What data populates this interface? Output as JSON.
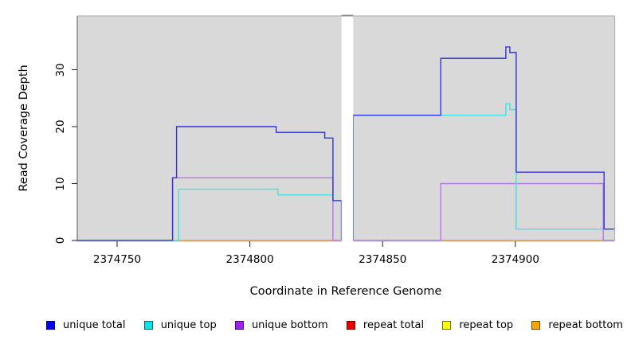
{
  "chart_data": {
    "type": "line",
    "style": "step-coverage-plot",
    "xlabel": "Coordinate in Reference Genome",
    "ylabel": "Read Coverage Depth",
    "xlim": [
      2374735,
      2374937.4
    ],
    "ylim": [
      0,
      39.4
    ],
    "grid": false,
    "plot_bg": "#d9d9d9",
    "x_ticks": [
      {
        "value": 2374750,
        "label": "2374750"
      },
      {
        "value": 2374800,
        "label": "2374800"
      },
      {
        "value": 2374850,
        "label": "2374850"
      },
      {
        "value": 2374900,
        "label": "2374900"
      }
    ],
    "y_ticks": [
      {
        "value": 0,
        "label": "0"
      },
      {
        "value": 10,
        "label": "10"
      },
      {
        "value": 20,
        "label": "20"
      },
      {
        "value": 30,
        "label": "30"
      }
    ],
    "x_break": {
      "from": 2374834.5,
      "to": 2374838.9
    },
    "series": [
      {
        "name": "repeat total",
        "color": "#e02020",
        "segments": [
          [
            [
              2374735,
              0
            ],
            [
              2374834.5,
              0
            ]
          ],
          [
            [
              2374838.9,
              0
            ],
            [
              2374937.4,
              0
            ]
          ]
        ]
      },
      {
        "name": "repeat top",
        "color": "#ffe800",
        "segments": [
          [
            [
              2374735,
              0
            ],
            [
              2374834.5,
              0
            ]
          ],
          [
            [
              2374838.9,
              0
            ],
            [
              2374937.4,
              0
            ]
          ]
        ]
      },
      {
        "name": "repeat bottom",
        "color": "#ff9d26",
        "segments": [
          [
            [
              2374735,
              0
            ],
            [
              2374834.5,
              0
            ]
          ],
          [
            [
              2374838.9,
              0
            ],
            [
              2374937.4,
              0
            ]
          ]
        ]
      },
      {
        "name": "unique bottom",
        "color": "#b678ec",
        "segments": [
          [
            [
              2374735,
              0
            ],
            [
              2374770.9,
              0
            ],
            [
              2374770.9,
              11
            ],
            [
              2374831.3,
              11
            ],
            [
              2374831.3,
              0
            ],
            [
              2374834.5,
              0
            ]
          ],
          [
            [
              2374838.9,
              0
            ],
            [
              2374871.9,
              0
            ],
            [
              2374871.9,
              10
            ],
            [
              2374933.1,
              10
            ],
            [
              2374933.1,
              0
            ],
            [
              2374937.4,
              0
            ]
          ]
        ]
      },
      {
        "name": "unique top",
        "color": "#3fe3e8",
        "segments": [
          [
            [
              2374735,
              0
            ],
            [
              2374773.2,
              0
            ],
            [
              2374773.2,
              9
            ],
            [
              2374810.6,
              9
            ],
            [
              2374810.6,
              8
            ],
            [
              2374831.3,
              8
            ],
            [
              2374831.3,
              7
            ],
            [
              2374834.5,
              7
            ],
            [
              2374834.5,
              0
            ]
          ],
          [
            [
              2374838.9,
              0
            ],
            [
              2374838.9,
              22
            ],
            [
              2374896.4,
              22
            ],
            [
              2374896.4,
              24
            ],
            [
              2374897.9,
              24
            ],
            [
              2374897.9,
              23
            ],
            [
              2374900.3,
              23
            ],
            [
              2374900.3,
              2
            ],
            [
              2374937.4,
              2
            ]
          ]
        ]
      },
      {
        "name": "unique total",
        "color": "#3232e0",
        "segments": [
          [
            [
              2374735,
              0
            ],
            [
              2374770.9,
              0
            ],
            [
              2374770.9,
              11
            ],
            [
              2374772.4,
              11
            ],
            [
              2374772.4,
              20
            ],
            [
              2374809.9,
              20
            ],
            [
              2374809.9,
              19
            ],
            [
              2374828.2,
              19
            ],
            [
              2374828.2,
              18
            ],
            [
              2374831.3,
              18
            ],
            [
              2374831.3,
              7
            ],
            [
              2374834.5,
              7
            ],
            [
              2374834.5,
              0
            ]
          ],
          [
            [
              2374838.9,
              0
            ],
            [
              2374838.9,
              22
            ],
            [
              2374871.9,
              22
            ],
            [
              2374871.9,
              32
            ],
            [
              2374896.4,
              32
            ],
            [
              2374896.4,
              34
            ],
            [
              2374897.9,
              34
            ],
            [
              2374897.9,
              33
            ],
            [
              2374900.3,
              33
            ],
            [
              2374900.3,
              12
            ],
            [
              2374933.4,
              12
            ],
            [
              2374933.4,
              2
            ],
            [
              2374937.4,
              2
            ]
          ]
        ]
      }
    ]
  },
  "legend": {
    "items": [
      {
        "label": "unique total",
        "color": "#0000ee"
      },
      {
        "label": "unique top",
        "color": "#00e5ee"
      },
      {
        "label": "unique bottom",
        "color": "#a020f0"
      },
      {
        "label": "repeat total",
        "color": "#ee0000"
      },
      {
        "label": "repeat top",
        "color": "#ffff00"
      },
      {
        "label": "repeat bottom",
        "color": "#ffa500"
      }
    ]
  }
}
